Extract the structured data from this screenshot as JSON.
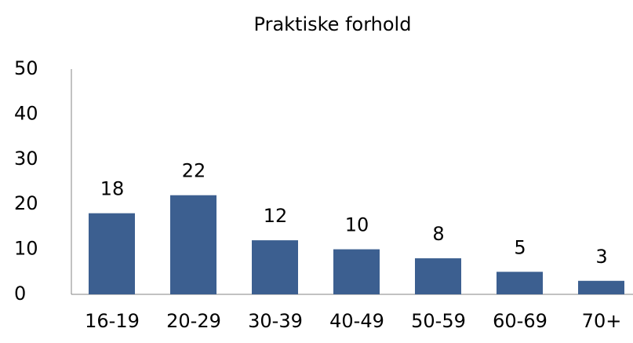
{
  "chart_data": {
    "type": "bar",
    "title": "Praktiske forhold",
    "categories": [
      "16-19",
      "20-29",
      "30-39",
      "40-49",
      "50-59",
      "60-69",
      "70+"
    ],
    "values": [
      18,
      22,
      12,
      10,
      8,
      5,
      3
    ],
    "color": "#3c5f90",
    "ylim": [
      0,
      50
    ],
    "yticks": [
      0,
      10,
      20,
      30,
      40,
      50
    ],
    "grid": false
  }
}
